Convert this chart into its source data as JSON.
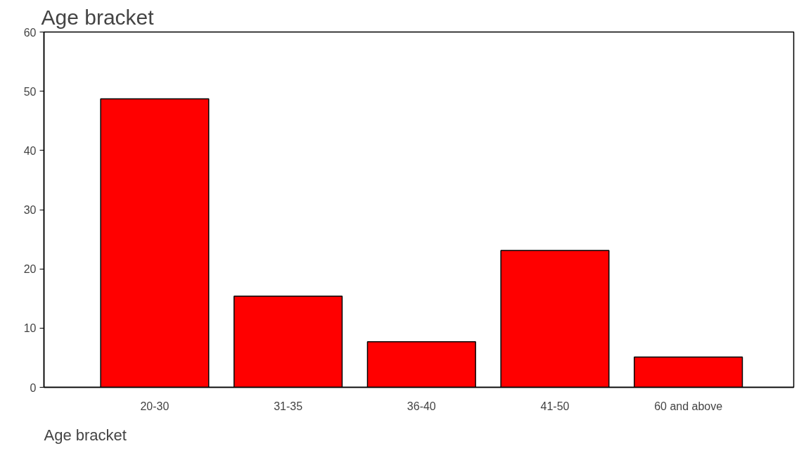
{
  "chart_data": {
    "type": "bar",
    "title": "Age bracket",
    "xlabel": "Age bracket",
    "categories": [
      "20-30",
      "31-35",
      "36-40",
      "41-50",
      "60 and above"
    ],
    "values": [
      48.7,
      15.4,
      7.7,
      23.1,
      5.1
    ],
    "color": "#ff0000",
    "ylim": [
      0,
      60
    ],
    "yticks": [
      0,
      10,
      20,
      30,
      40,
      50,
      60
    ],
    "grid": false
  }
}
